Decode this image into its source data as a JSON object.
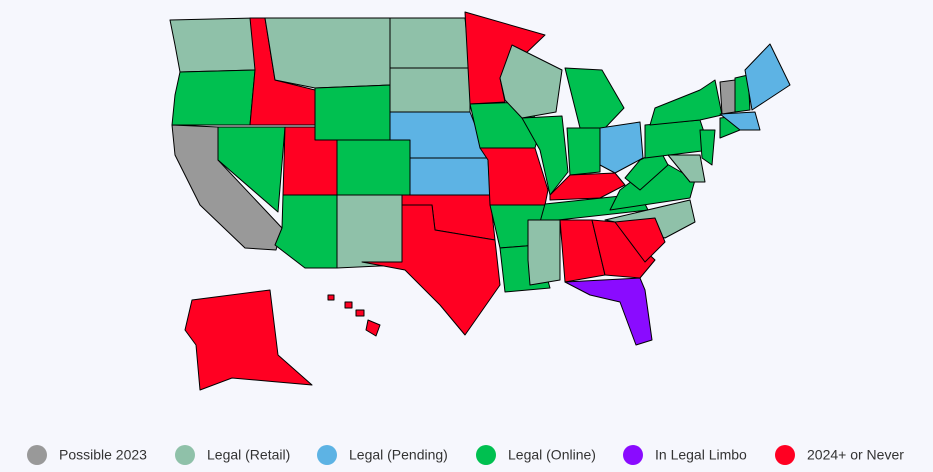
{
  "legend": {
    "items": [
      {
        "label": "Possible 2023",
        "color": "#999999"
      },
      {
        "label": "Legal (Retail)",
        "color": "#8fc1a9"
      },
      {
        "label": "Legal (Pending)",
        "color": "#5db3e4"
      },
      {
        "label": "Legal (Online)",
        "color": "#00c050"
      },
      {
        "label": "In Legal Limbo",
        "color": "#8a0bff"
      },
      {
        "label": "2024+ or Never",
        "color": "#ff0022"
      }
    ]
  }
}
